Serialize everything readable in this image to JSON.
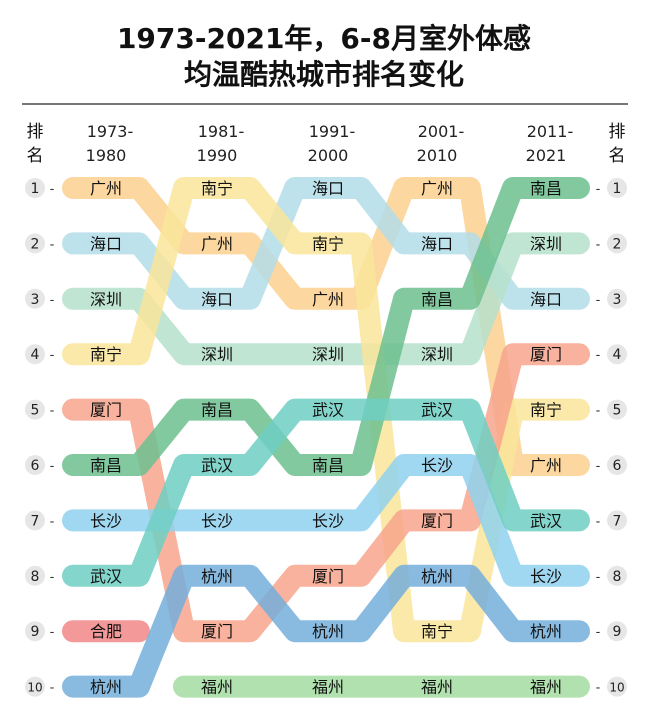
{
  "chart_data": {
    "type": "bump",
    "title": [
      "1973-2021年，6-8月室外体感",
      "均温酷热城市排名变化"
    ],
    "rank_label": "排名",
    "periods": [
      [
        "1973-",
        "1980"
      ],
      [
        "1981-",
        "1990"
      ],
      [
        "1991-",
        "2000"
      ],
      [
        "2001-",
        "2010"
      ],
      [
        "2011-",
        "2021"
      ]
    ],
    "ranks": [
      1,
      2,
      3,
      4,
      5,
      6,
      7,
      8,
      9,
      10
    ],
    "series": [
      {
        "name": "广州",
        "color": "#fcd08f",
        "ranks": [
          1,
          2,
          3,
          1,
          6
        ]
      },
      {
        "name": "海口",
        "color": "#b3dde8",
        "ranks": [
          2,
          3,
          1,
          2,
          3
        ]
      },
      {
        "name": "深圳",
        "color": "#b6e0cb",
        "ranks": [
          3,
          4,
          4,
          4,
          2
        ]
      },
      {
        "name": "南宁",
        "color": "#f9e59a",
        "ranks": [
          4,
          1,
          2,
          9,
          5
        ]
      },
      {
        "name": "厦门",
        "color": "#f7a58c",
        "ranks": [
          5,
          9,
          8,
          7,
          4
        ]
      },
      {
        "name": "南昌",
        "color": "#6cbf8f",
        "ranks": [
          6,
          5,
          6,
          3,
          1
        ]
      },
      {
        "name": "长沙",
        "color": "#8fd1ee",
        "ranks": [
          7,
          7,
          7,
          6,
          8
        ]
      },
      {
        "name": "武汉",
        "color": "#6fcfc3",
        "ranks": [
          8,
          6,
          5,
          5,
          7
        ]
      },
      {
        "name": "合肥",
        "color": "#f28787",
        "ranks": [
          9,
          null,
          null,
          null,
          null
        ]
      },
      {
        "name": "杭州",
        "color": "#74aedb",
        "ranks": [
          10,
          8,
          9,
          8,
          9
        ]
      },
      {
        "name": "福州",
        "color": "#a3dca0",
        "ranks": [
          null,
          10,
          10,
          10,
          10
        ]
      }
    ]
  }
}
